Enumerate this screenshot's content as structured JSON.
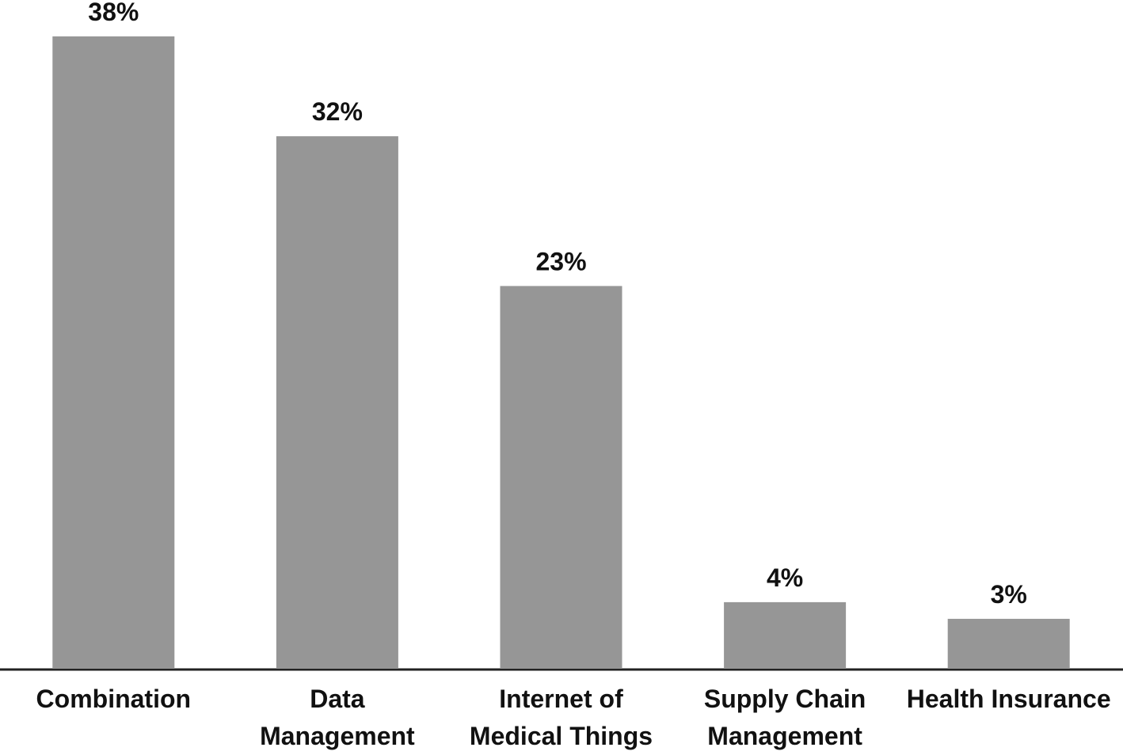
{
  "chart_data": {
    "type": "bar",
    "categories": [
      "Combination",
      "Data Management",
      "Internet of Medical Things",
      "Supply Chain Management",
      "Health Insurance"
    ],
    "values": [
      38,
      32,
      23,
      4,
      3
    ],
    "value_labels": [
      "38%",
      "32%",
      "23%",
      "4%",
      "3%"
    ],
    "color": "#969696"
  }
}
